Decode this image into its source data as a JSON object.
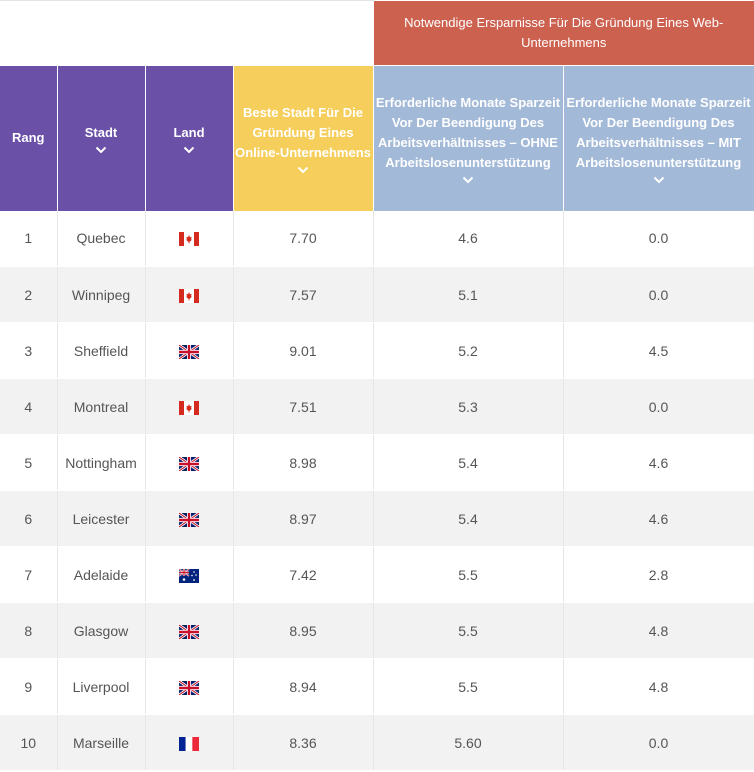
{
  "group_header": "Notwendige Ersparnisse Für Die Gründung Eines Web-Unternehmens",
  "columns": {
    "rank": "Rang",
    "city": "Stadt",
    "country": "Land",
    "score": "Beste Stadt Für Die Gründung Eines Online-Unternehmens",
    "months_without": "Erforderliche Monate Sparzeit Vor Der Beendigung Des Arbeitsverhältnisses – OHNE Arbeitslosenunterstützung",
    "months_with": "Erforderliche Monate Sparzeit Vor Der Beendigung Des Arbeitsverhältnisses – MIT Arbeitslosenunterstützung"
  },
  "colors": {
    "header_purple": "#6a50a7",
    "header_yellow": "#f6ce5c",
    "header_blue": "#a3b9d8",
    "group_red": "#cd6150"
  },
  "rows": [
    {
      "rank": "1",
      "city": "Quebec",
      "flag": "canada-flag-icon",
      "score": "7.70",
      "without": "4.6",
      "with": "0.0"
    },
    {
      "rank": "2",
      "city": "Winnipeg",
      "flag": "canada-flag-icon",
      "score": "7.57",
      "without": "5.1",
      "with": "0.0"
    },
    {
      "rank": "3",
      "city": "Sheffield",
      "flag": "uk-flag-icon",
      "score": "9.01",
      "without": "5.2",
      "with": "4.5"
    },
    {
      "rank": "4",
      "city": "Montreal",
      "flag": "canada-flag-icon",
      "score": "7.51",
      "without": "5.3",
      "with": "0.0"
    },
    {
      "rank": "5",
      "city": "Nottingham",
      "flag": "uk-flag-icon",
      "score": "8.98",
      "without": "5.4",
      "with": "4.6"
    },
    {
      "rank": "6",
      "city": "Leicester",
      "flag": "uk-flag-icon",
      "score": "8.97",
      "without": "5.4",
      "with": "4.6"
    },
    {
      "rank": "7",
      "city": "Adelaide",
      "flag": "australia-flag-icon",
      "score": "7.42",
      "without": "5.5",
      "with": "2.8"
    },
    {
      "rank": "8",
      "city": "Glasgow",
      "flag": "uk-flag-icon",
      "score": "8.95",
      "without": "5.5",
      "with": "4.8"
    },
    {
      "rank": "9",
      "city": "Liverpool",
      "flag": "uk-flag-icon",
      "score": "8.94",
      "without": "5.5",
      "with": "4.8"
    },
    {
      "rank": "10",
      "city": "Marseille",
      "flag": "france-flag-icon",
      "score": "8.36",
      "without": "5.60",
      "with": "0.0"
    }
  ]
}
